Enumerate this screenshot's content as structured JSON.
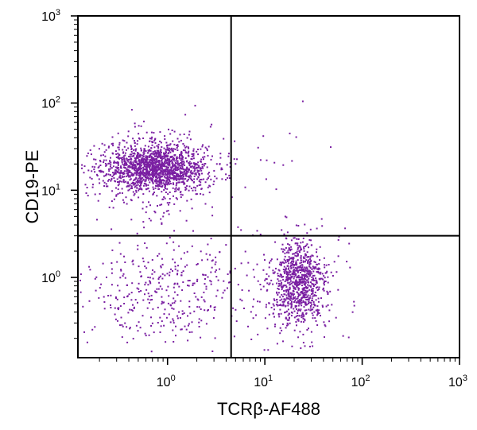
{
  "chart_data": {
    "type": "scatter",
    "xlabel": "TCRβ-AF488",
    "ylabel": "CD19-PE",
    "x_scale": "log",
    "y_scale": "log",
    "xlim": [
      0.12,
      1000
    ],
    "ylim": [
      0.12,
      1000
    ],
    "grid": false,
    "legend": "none",
    "point_color": "#7a1fa2",
    "gates": {
      "x": 4.5,
      "y": 3.0
    },
    "x_ticks": [
      {
        "base": "10",
        "exp": "0",
        "value": 1
      },
      {
        "base": "10",
        "exp": "1",
        "value": 10
      },
      {
        "base": "10",
        "exp": "2",
        "value": 100
      },
      {
        "base": "10",
        "exp": "3",
        "value": 1000
      }
    ],
    "y_ticks": [
      {
        "base": "10",
        "exp": "0",
        "value": 1
      },
      {
        "base": "10",
        "exp": "1",
        "value": 10
      },
      {
        "base": "10",
        "exp": "2",
        "value": 100
      },
      {
        "base": "10",
        "exp": "3",
        "value": 1000
      }
    ],
    "populations": [
      {
        "center": [
          0.75,
          18.0
        ],
        "spread": [
          0.26,
          0.13
        ],
        "n": 1400
      },
      {
        "center": [
          0.8,
          17.0
        ],
        "spread": [
          0.45,
          0.27
        ],
        "n": 350
      },
      {
        "center": [
          22.0,
          0.9
        ],
        "spread": [
          0.13,
          0.23
        ],
        "n": 700
      },
      {
        "center": [
          22.0,
          0.7
        ],
        "spread": [
          0.22,
          0.35
        ],
        "n": 250
      },
      {
        "center": [
          0.9,
          0.7
        ],
        "spread": [
          0.4,
          0.32
        ],
        "n": 380
      },
      {
        "center": [
          20.0,
          20.0
        ],
        "spread": [
          0.3,
          0.3
        ],
        "n": 6
      }
    ]
  }
}
